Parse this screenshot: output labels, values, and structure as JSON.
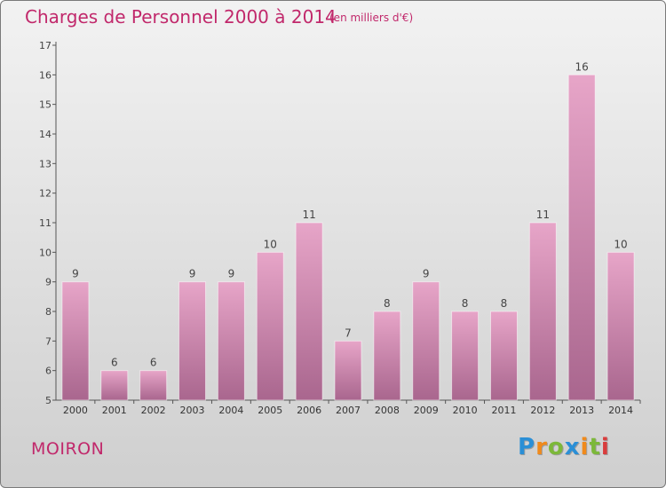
{
  "header": {
    "title": "Charges de Personnel 2000 à 2014",
    "unit": "(en milliers d'€)"
  },
  "footer": {
    "commune": "MOIRON",
    "brand": "Proxiti",
    "brand_letters": [
      {
        "ch": "P",
        "color": "#2b8fd6"
      },
      {
        "ch": "r",
        "color": "#f08a1c"
      },
      {
        "ch": "o",
        "color": "#7cb83a"
      },
      {
        "ch": "x",
        "color": "#2b8fd6"
      },
      {
        "ch": "i",
        "color": "#f08a1c"
      },
      {
        "ch": "t",
        "color": "#7cb83a"
      },
      {
        "ch": "i",
        "color": "#d93c3c"
      }
    ]
  },
  "colors": {
    "accent": "#c1286b",
    "bar_top": "#e7a5c8",
    "bar_bottom": "#a9668e"
  },
  "chart_data": {
    "type": "bar",
    "categories": [
      "2000",
      "2001",
      "2002",
      "2003",
      "2004",
      "2005",
      "2006",
      "2007",
      "2008",
      "2009",
      "2010",
      "2011",
      "2012",
      "2013",
      "2014"
    ],
    "values": [
      9,
      6,
      6,
      9,
      9,
      10,
      11,
      7,
      8,
      9,
      8,
      8,
      11,
      16,
      10
    ],
    "title": "Charges de Personnel 2000 à 2014",
    "subtitle": "(en milliers d'€)",
    "xlabel": "",
    "ylabel": "",
    "ylim": [
      5,
      17
    ],
    "yticks": [
      5,
      6,
      7,
      8,
      9,
      10,
      11,
      12,
      13,
      14,
      15,
      16,
      17
    ],
    "grid": false,
    "legend": "none",
    "data_labels": true
  }
}
